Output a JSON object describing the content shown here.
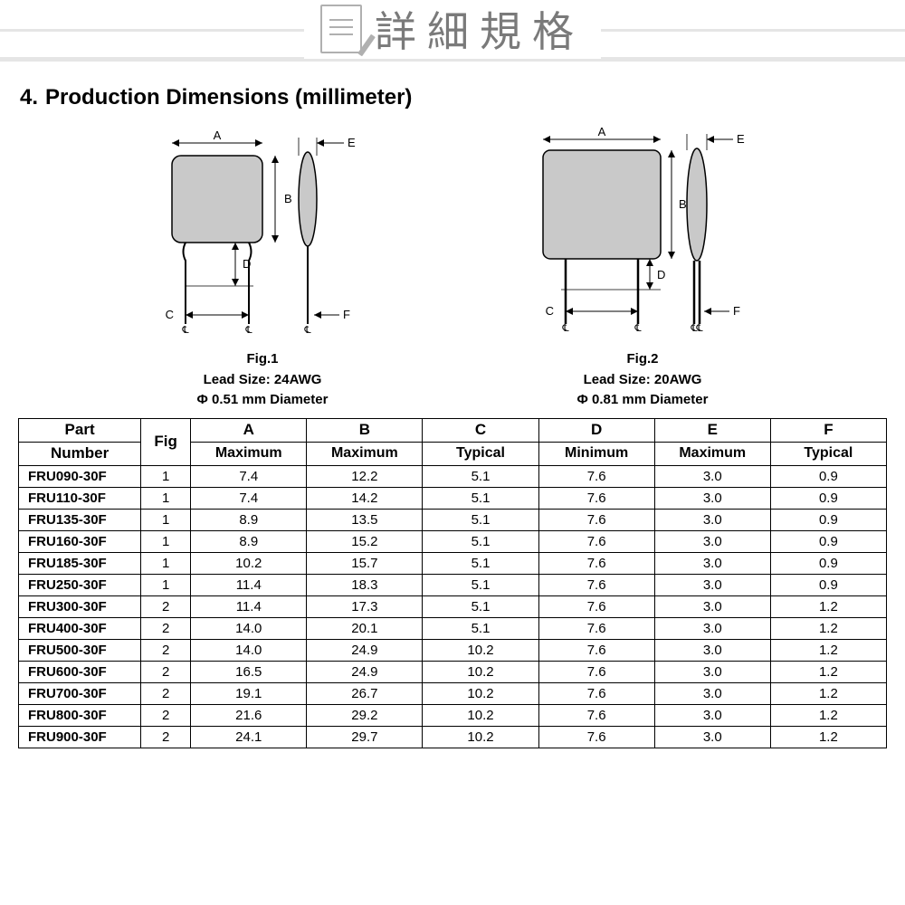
{
  "header": {
    "title": "詳細規格"
  },
  "section": {
    "number": "4.",
    "title": "Production Dimensions (millimeter)"
  },
  "fig1": {
    "label": "Fig.1",
    "lead": "Lead Size: 24AWG",
    "diam": "Φ 0.51 mm Diameter"
  },
  "fig2": {
    "label": "Fig.2",
    "lead": "Lead Size: 20AWG",
    "diam": "Φ 0.81 mm Diameter"
  },
  "table": {
    "header1": {
      "part": "Part",
      "number": "Number",
      "fig": "Fig",
      "A": "A",
      "B": "B",
      "C": "C",
      "D": "D",
      "E": "E",
      "F": "F"
    },
    "header2": {
      "A": "Maximum",
      "B": "Maximum",
      "C": "Typical",
      "D": "Minimum",
      "E": "Maximum",
      "F": "Typical"
    },
    "rows": [
      {
        "part": "FRU090-30F",
        "fig": "1",
        "A": "7.4",
        "B": "12.2",
        "C": "5.1",
        "D": "7.6",
        "E": "3.0",
        "F": "0.9"
      },
      {
        "part": "FRU110-30F",
        "fig": "1",
        "A": "7.4",
        "B": "14.2",
        "C": "5.1",
        "D": "7.6",
        "E": "3.0",
        "F": "0.9"
      },
      {
        "part": "FRU135-30F",
        "fig": "1",
        "A": "8.9",
        "B": "13.5",
        "C": "5.1",
        "D": "7.6",
        "E": "3.0",
        "F": "0.9"
      },
      {
        "part": "FRU160-30F",
        "fig": "1",
        "A": "8.9",
        "B": "15.2",
        "C": "5.1",
        "D": "7.6",
        "E": "3.0",
        "F": "0.9"
      },
      {
        "part": "FRU185-30F",
        "fig": "1",
        "A": "10.2",
        "B": "15.7",
        "C": "5.1",
        "D": "7.6",
        "E": "3.0",
        "F": "0.9"
      },
      {
        "part": "FRU250-30F",
        "fig": "1",
        "A": "11.4",
        "B": "18.3",
        "C": "5.1",
        "D": "7.6",
        "E": "3.0",
        "F": "0.9"
      },
      {
        "part": "FRU300-30F",
        "fig": "2",
        "A": "11.4",
        "B": "17.3",
        "C": "5.1",
        "D": "7.6",
        "E": "3.0",
        "F": "1.2"
      },
      {
        "part": "FRU400-30F",
        "fig": "2",
        "A": "14.0",
        "B": "20.1",
        "C": "5.1",
        "D": "7.6",
        "E": "3.0",
        "F": "1.2"
      },
      {
        "part": "FRU500-30F",
        "fig": "2",
        "A": "14.0",
        "B": "24.9",
        "C": "10.2",
        "D": "7.6",
        "E": "3.0",
        "F": "1.2"
      },
      {
        "part": "FRU600-30F",
        "fig": "2",
        "A": "16.5",
        "B": "24.9",
        "C": "10.2",
        "D": "7.6",
        "E": "3.0",
        "F": "1.2"
      },
      {
        "part": "FRU700-30F",
        "fig": "2",
        "A": "19.1",
        "B": "26.7",
        "C": "10.2",
        "D": "7.6",
        "E": "3.0",
        "F": "1.2"
      },
      {
        "part": "FRU800-30F",
        "fig": "2",
        "A": "21.6",
        "B": "29.2",
        "C": "10.2",
        "D": "7.6",
        "E": "3.0",
        "F": "1.2"
      },
      {
        "part": "FRU900-30F",
        "fig": "2",
        "A": "24.1",
        "B": "29.7",
        "C": "10.2",
        "D": "7.6",
        "E": "3.0",
        "F": "1.2"
      }
    ]
  },
  "style": {
    "header_text_color": "#7a7a7a",
    "header_underline_color": "#e5e5e5",
    "icon_stroke": "#b0b0b0",
    "diagram_fill": "#c0c0c0",
    "diagram_stroke": "#000000",
    "table_border": "#000000",
    "background": "#ffffff",
    "section_title_fontsize": 24,
    "header_title_fontsize": 46,
    "table_fontsize": 15
  }
}
